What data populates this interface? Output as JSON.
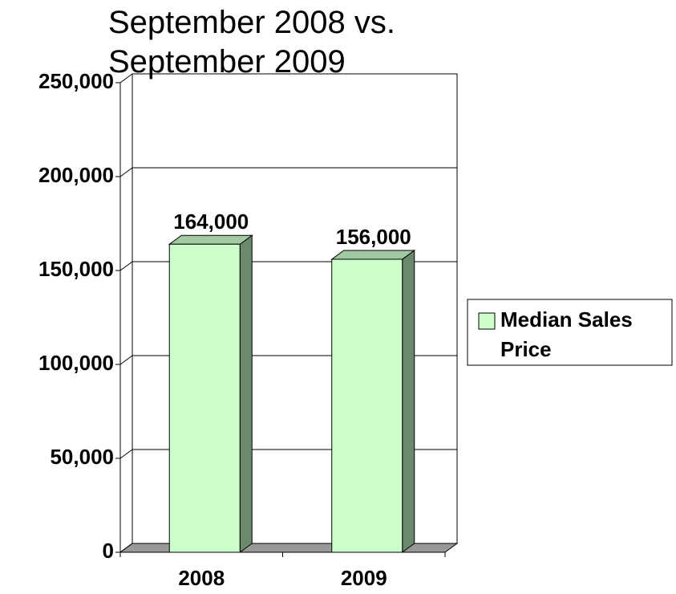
{
  "chart_data": {
    "type": "bar3d",
    "title": "September 2008 vs. September 2009",
    "categories": [
      "2008",
      "2009"
    ],
    "series": [
      {
        "name": "Median Sales Price",
        "color": "#ccffcc",
        "values": [
          164000,
          156000
        ],
        "value_labels": [
          "164,000",
          "156,000"
        ]
      }
    ],
    "ylim": [
      0,
      250000
    ],
    "yticks": [
      0,
      {
        "value": 50000,
        "label": "50,000"
      },
      {
        "value": 100000,
        "label": "100,000"
      },
      {
        "value": 150000,
        "label": "150,000"
      },
      {
        "value": 200000,
        "label": "200,000"
      },
      {
        "value": 250000,
        "label": "250,000"
      }
    ],
    "grid": true,
    "legend": "right"
  }
}
